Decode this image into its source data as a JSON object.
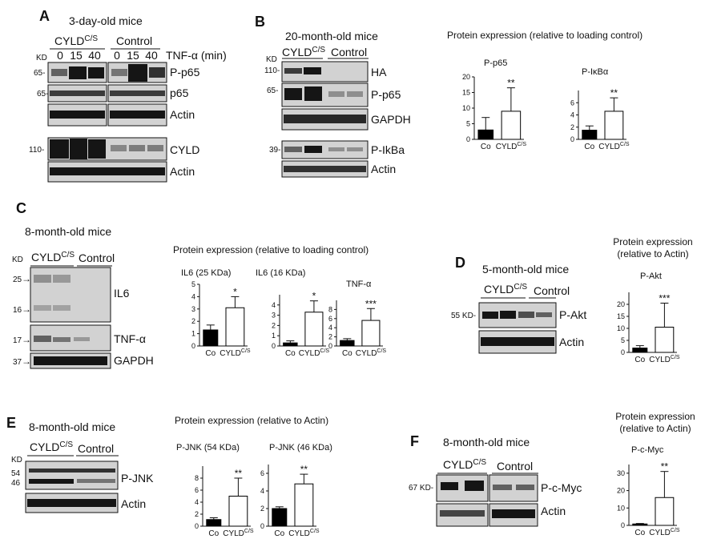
{
  "panels": {
    "A": {
      "letter": "A",
      "title": "3-day-old mice",
      "groups": [
        "CYLD",
        "Control"
      ],
      "group_sup": "C/S",
      "kd": "KD",
      "tnf_label": "TNF-α (min)",
      "timepoints": [
        "0",
        "15",
        "40",
        "0",
        "15",
        "40"
      ],
      "mw": [
        "65-",
        "65-",
        "110-"
      ],
      "rows": [
        "P-p65",
        "p65",
        "Actin",
        "CYLD",
        "Actin"
      ]
    },
    "B": {
      "letter": "B",
      "title": "20-month-old mice",
      "groups": [
        "CYLD",
        "Control"
      ],
      "group_sup": "C/S",
      "kd": "KD",
      "mw": [
        "110-",
        "65-",
        "39-"
      ],
      "rows": [
        "HA",
        "P-p65",
        "GAPDH",
        "P-IkBa",
        "Actin"
      ],
      "chart_heading": "Protein expression (relative to loading control)"
    },
    "C": {
      "letter": "C",
      "title": "8-month-old mice",
      "groups": [
        "CYLD",
        "Control"
      ],
      "group_sup": "C/S",
      "kd": "KD",
      "mw": [
        "25",
        "16",
        "17",
        "37"
      ],
      "rows": [
        "IL6",
        "TNF-α",
        "GAPDH"
      ],
      "chart_heading": "Protein expression (relative to loading control)"
    },
    "D": {
      "letter": "D",
      "title": "5-month-old mice",
      "groups": [
        "CYLD",
        "Control"
      ],
      "group_sup": "C/S",
      "mw": [
        "55 KD-"
      ],
      "rows": [
        "P-Akt",
        "Actin"
      ],
      "chart_heading_1": "Protein expression",
      "chart_heading_2": "(relative to Actin)"
    },
    "E": {
      "letter": "E",
      "title": "8-month-old mice",
      "groups": [
        "CYLD",
        "Control"
      ],
      "group_sup": "C/S",
      "kd": "KD",
      "mw": [
        "54",
        "46"
      ],
      "rows": [
        "P-JNK",
        "Actin"
      ],
      "chart_heading": "Protein expression (relative to Actin)"
    },
    "F": {
      "letter": "F",
      "title": "8-month-old mice",
      "groups": [
        "CYLD",
        "Control"
      ],
      "group_sup": "C/S",
      "mw": [
        "67 KD-"
      ],
      "rows": [
        "P-c-Myc",
        "Actin"
      ],
      "chart_heading_1": "Protein expression",
      "chart_heading_2": "(relative to Actin)"
    }
  },
  "chart_data": [
    {
      "id": "B1",
      "type": "bar",
      "title": "P-p65",
      "categories": [
        "Co",
        "CYLD"
      ],
      "cat_sup": "C/S",
      "values": [
        3,
        9
      ],
      "errors": [
        4,
        7.5
      ],
      "ylim": [
        0,
        20
      ],
      "yticks": [
        0,
        5,
        10,
        15,
        20
      ],
      "significance": "**"
    },
    {
      "id": "B2",
      "type": "bar",
      "title": "P-IκBα",
      "categories": [
        "Co",
        "CYLD"
      ],
      "cat_sup": "C/S",
      "values": [
        1.5,
        4.6
      ],
      "errors": [
        0.7,
        2.2
      ],
      "ylim": [
        0,
        8
      ],
      "yticks": [
        0,
        2,
        4,
        6
      ],
      "significance": "**"
    },
    {
      "id": "C1",
      "type": "bar",
      "title": "IL6 (25 KDa)",
      "categories": [
        "Co",
        "CYLD"
      ],
      "cat_sup": "C/S",
      "values": [
        1.3,
        3.1
      ],
      "errors": [
        0.4,
        0.9
      ],
      "ylim": [
        0,
        5
      ],
      "yticks": [
        0,
        1,
        2,
        3,
        4,
        5
      ],
      "significance": "*"
    },
    {
      "id": "C2",
      "type": "bar",
      "title": "IL6 (16 KDa)",
      "categories": [
        "Co",
        "CYLD"
      ],
      "cat_sup": "C/S",
      "values": [
        0.3,
        3.3
      ],
      "errors": [
        0.2,
        1.1
      ],
      "ylim": [
        0,
        5
      ],
      "yticks": [
        0,
        1,
        2,
        3,
        4
      ],
      "significance": "*"
    },
    {
      "id": "C3",
      "type": "bar",
      "title": "TNF-α",
      "categories": [
        "Co",
        "CYLD"
      ],
      "cat_sup": "C/S",
      "values": [
        1.2,
        5.6
      ],
      "errors": [
        0.4,
        2.6
      ],
      "ylim": [
        0,
        10
      ],
      "yticks": [
        0,
        2,
        4,
        6,
        8
      ],
      "significance": "***"
    },
    {
      "id": "D1",
      "type": "bar",
      "title": "P-Akt",
      "categories": [
        "Co",
        "CYLD"
      ],
      "cat_sup": "C/S",
      "values": [
        1.8,
        10.5
      ],
      "errors": [
        1.0,
        10.0
      ],
      "ylim": [
        0,
        25
      ],
      "yticks": [
        0,
        5,
        10,
        15,
        20
      ],
      "significance": "***"
    },
    {
      "id": "E1",
      "type": "bar",
      "title": "P-JNK (54 KDa)",
      "categories": [
        "Co",
        "CYLD"
      ],
      "cat_sup": "C/S",
      "values": [
        1.1,
        5.0
      ],
      "errors": [
        0.3,
        3.0
      ],
      "ylim": [
        0,
        10
      ],
      "yticks": [
        0,
        2,
        4,
        6,
        8
      ],
      "significance": "**"
    },
    {
      "id": "E2",
      "type": "bar",
      "title": "P-JNK (46 KDa)",
      "categories": [
        "Co",
        "CYLD"
      ],
      "cat_sup": "C/S",
      "values": [
        2.0,
        4.8
      ],
      "errors": [
        0.2,
        1.1
      ],
      "ylim": [
        0,
        7
      ],
      "yticks": [
        0,
        2,
        4,
        6
      ],
      "significance": "**"
    },
    {
      "id": "F1",
      "type": "bar",
      "title": "P-c-Myc",
      "categories": [
        "Co",
        "CYLD"
      ],
      "cat_sup": "C/S",
      "values": [
        0.8,
        16
      ],
      "errors": [
        0.3,
        15
      ],
      "ylim": [
        0,
        35
      ],
      "yticks": [
        0,
        10,
        20,
        30
      ],
      "significance": "**"
    }
  ]
}
